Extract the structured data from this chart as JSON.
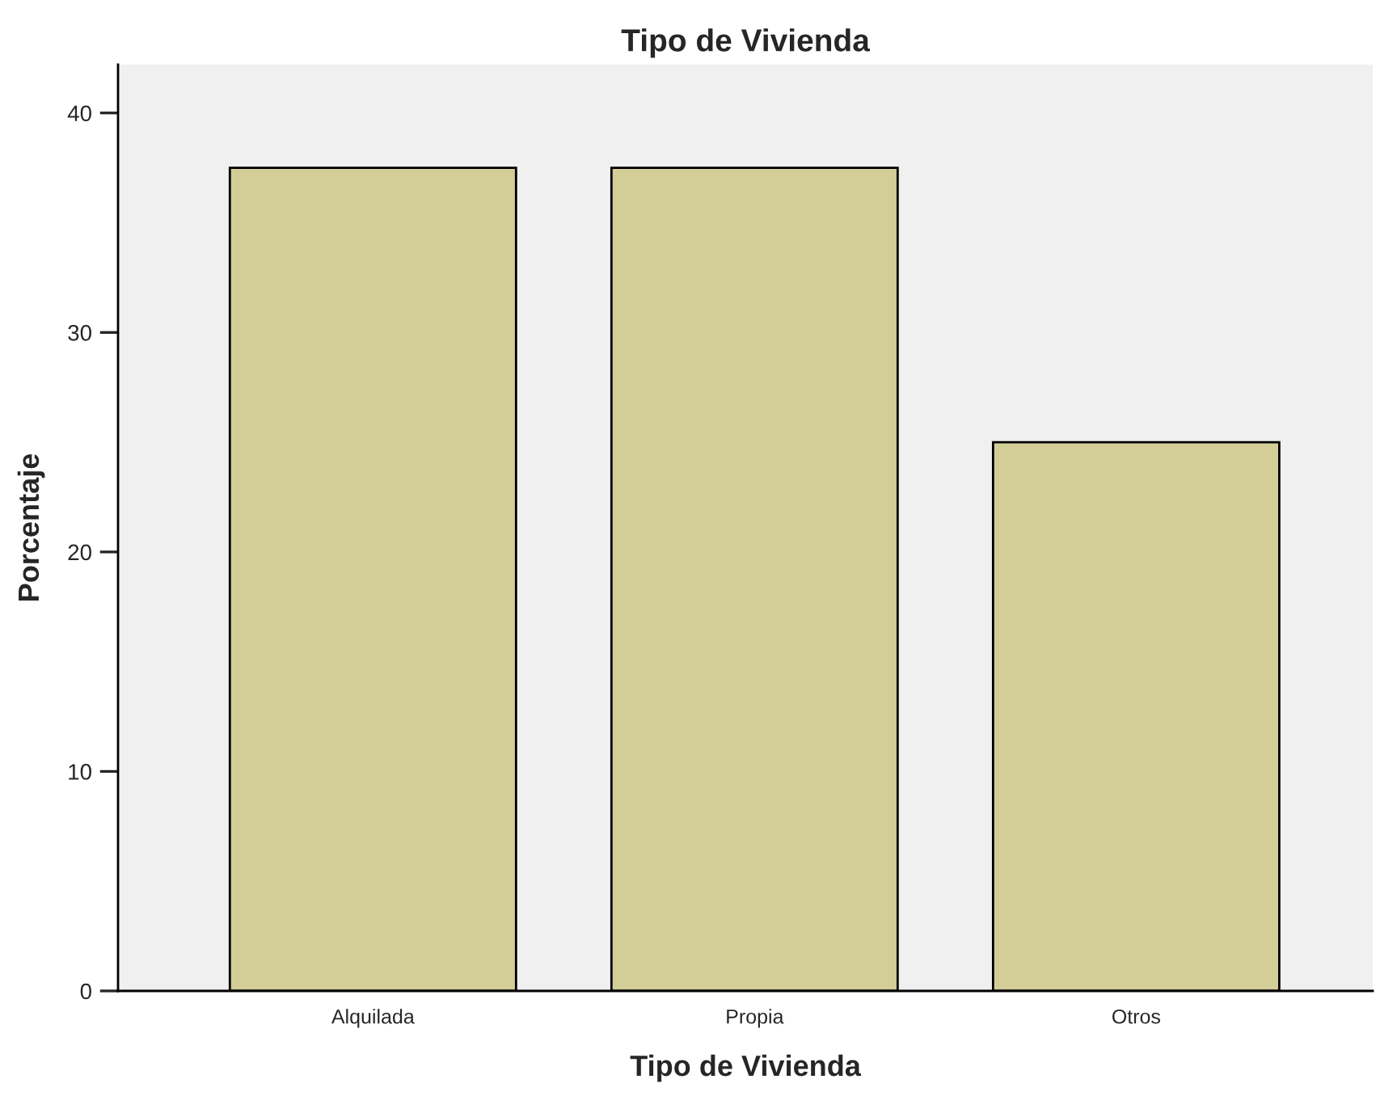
{
  "chart_data": {
    "type": "bar",
    "title": "Tipo de Vivienda",
    "xlabel": "Tipo de Vivienda",
    "ylabel": "Porcentaje",
    "categories": [
      "Alquilada",
      "Propia",
      "Otros"
    ],
    "values": [
      37.5,
      37.5,
      25
    ],
    "color": "#d3cd98",
    "ylim": [
      0,
      42.2
    ],
    "yticks": [
      0,
      10,
      20,
      30,
      40
    ],
    "grid": false,
    "legend": false
  }
}
